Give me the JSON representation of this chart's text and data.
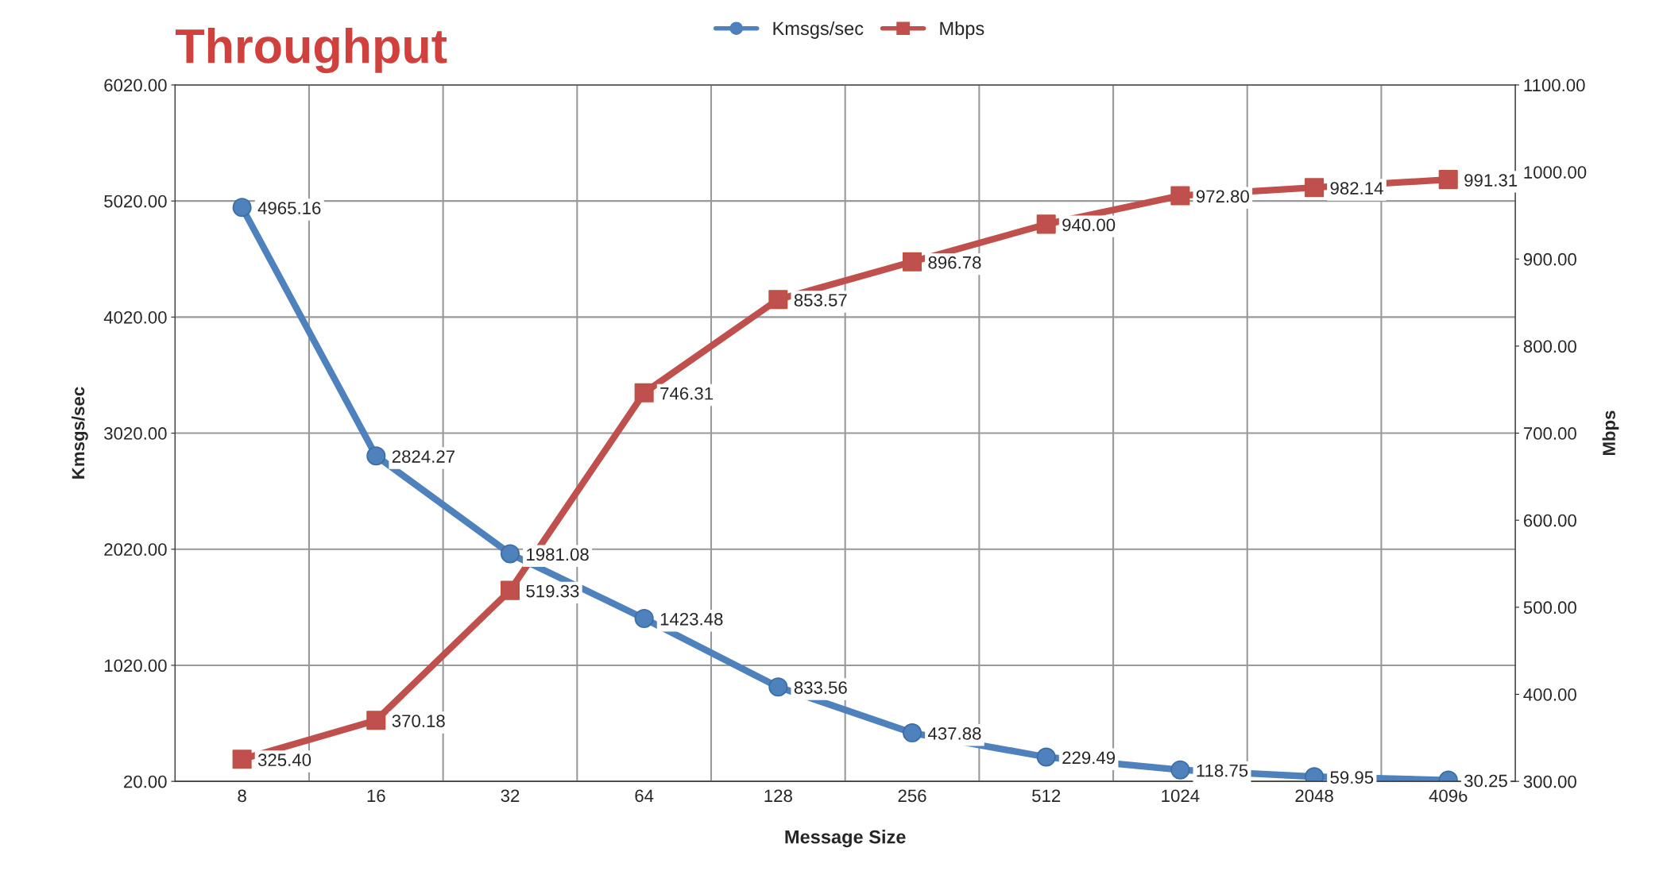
{
  "chart_data": {
    "type": "line",
    "title": "Throughput",
    "xlabel": "Message Size",
    "ylabel": "Kmsgs/sec",
    "y2label": "Mbps",
    "categories": [
      "8",
      "16",
      "32",
      "64",
      "128",
      "256",
      "512",
      "1024",
      "2048",
      "4096"
    ],
    "series": [
      {
        "name": "Kmsgs/sec",
        "color": "#4f81bd",
        "marker": "circle",
        "values": [
          4965.16,
          2824.27,
          1981.08,
          1423.48,
          833.56,
          437.88,
          229.49,
          118.75,
          59.95,
          30.25
        ],
        "value_labels": [
          "4965.16",
          "2824.27",
          "1981.08",
          "1423.48",
          "833.56",
          "437.88",
          "229.49",
          "118.75",
          "59.95",
          "30.25"
        ]
      },
      {
        "name": "Mbps",
        "color": "#c0504d",
        "marker": "square",
        "axis": "y2",
        "values": [
          325.4,
          370.18,
          519.33,
          746.31,
          853.57,
          896.78,
          940,
          972.8,
          982.14,
          991.31
        ],
        "value_labels": [
          "325.40",
          "370.18",
          "519.33",
          "746.31",
          "853.57",
          "896.78",
          "940.00",
          "972.80",
          "982.14",
          "991.31"
        ]
      }
    ],
    "ylim": [
      20,
      6020
    ],
    "yticks": [
      {
        "value": 20,
        "label": "20.00"
      },
      {
        "value": 1020,
        "label": "1020.00"
      },
      {
        "value": 2020,
        "label": "2020.00"
      },
      {
        "value": 3020,
        "label": "3020.00"
      },
      {
        "value": 4020,
        "label": "4020.00"
      },
      {
        "value": 5020,
        "label": "5020.00"
      },
      {
        "value": 6020,
        "label": "6020.00"
      }
    ],
    "y2lim": [
      300,
      1100
    ],
    "y2ticks": [
      {
        "value": 300,
        "label": "300.00"
      },
      {
        "value": 400,
        "label": "400.00"
      },
      {
        "value": 500,
        "label": "500.00"
      },
      {
        "value": 600,
        "label": "600.00"
      },
      {
        "value": 700,
        "label": "700.00"
      },
      {
        "value": 800,
        "label": "800.00"
      },
      {
        "value": 900,
        "label": "900.00"
      },
      {
        "value": 1000,
        "label": "1000.00"
      },
      {
        "value": 1100,
        "label": "1100.00"
      }
    ],
    "grid": true,
    "legend": "top",
    "line_style": "solid"
  }
}
